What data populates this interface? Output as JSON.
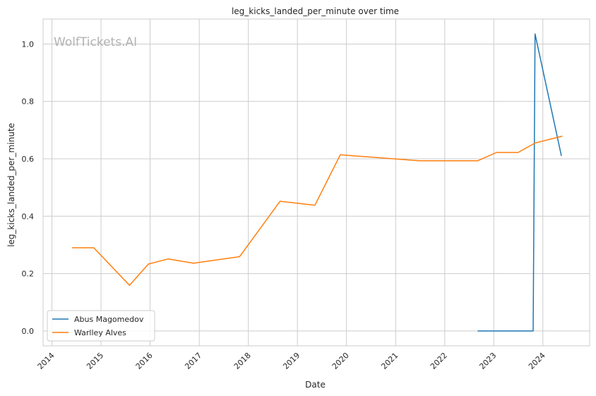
{
  "chart_data": {
    "type": "line",
    "title": "leg_kicks_landed_per_minute over time",
    "xlabel": "Date",
    "ylabel": "leg_kicks_landed_per_minute",
    "watermark": "WolfTickets.AI",
    "x_ticks": [
      "2014",
      "2015",
      "2016",
      "2017",
      "2018",
      "2019",
      "2020",
      "2021",
      "2022",
      "2023",
      "2024"
    ],
    "y_ticks": [
      "0.0",
      "0.2",
      "0.4",
      "0.6",
      "0.8",
      "1.0"
    ],
    "xlim": [
      "2013-10-27",
      "2024-12-14"
    ],
    "ylim": [
      -0.052,
      1.087
    ],
    "grid": true,
    "legend_position": "lower-left",
    "series": [
      {
        "name": "Abus Magomedov",
        "color": "#1f77b4",
        "points": [
          {
            "x": "2022-09-03",
            "y": 0.0
          },
          {
            "x": "2023-10-21",
            "y": 0.0
          },
          {
            "x": "2023-11-04",
            "y": 1.035
          },
          {
            "x": "2024-05-18",
            "y": 0.61
          }
        ]
      },
      {
        "name": "Warlley Alves",
        "color": "#ff7f0e",
        "points": [
          {
            "x": "2014-05-31",
            "y": 0.29
          },
          {
            "x": "2014-11-08",
            "y": 0.29
          },
          {
            "x": "2015-08-01",
            "y": 0.159
          },
          {
            "x": "2015-12-19",
            "y": 0.233
          },
          {
            "x": "2016-05-14",
            "y": 0.251
          },
          {
            "x": "2016-11-19",
            "y": 0.236
          },
          {
            "x": "2017-10-28",
            "y": 0.259
          },
          {
            "x": "2018-08-25",
            "y": 0.452
          },
          {
            "x": "2019-05-11",
            "y": 0.438
          },
          {
            "x": "2019-11-16",
            "y": 0.614
          },
          {
            "x": "2021-06-26",
            "y": 0.593
          },
          {
            "x": "2022-09-03",
            "y": 0.593
          },
          {
            "x": "2023-01-21",
            "y": 0.622
          },
          {
            "x": "2023-07-01",
            "y": 0.622
          },
          {
            "x": "2023-11-04",
            "y": 0.655
          },
          {
            "x": "2024-05-25",
            "y": 0.679
          }
        ]
      }
    ]
  }
}
